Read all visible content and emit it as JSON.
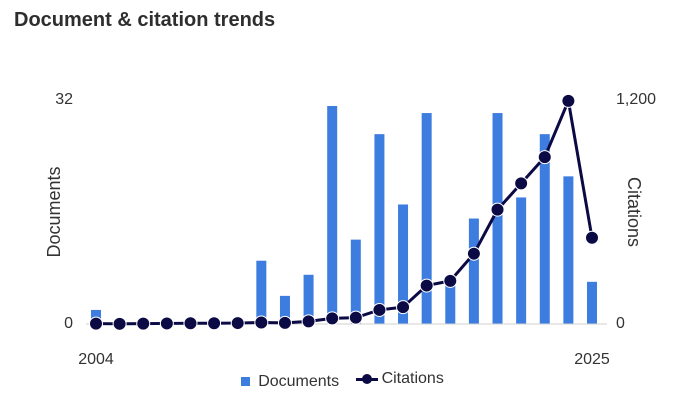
{
  "header": {
    "title": "Document & citation trends"
  },
  "chart_data": {
    "type": "bar+line",
    "x": [
      2004,
      2005,
      2006,
      2007,
      2008,
      2009,
      2010,
      2011,
      2012,
      2013,
      2014,
      2015,
      2016,
      2017,
      2018,
      2019,
      2020,
      2021,
      2022,
      2023,
      2024,
      2025
    ],
    "x_tick_labels": [
      "2004",
      "2025"
    ],
    "series": [
      {
        "name": "Documents",
        "type": "bar",
        "axis": "left",
        "values": [
          2,
          0,
          0,
          0,
          0,
          0,
          0,
          9,
          4,
          7,
          31,
          12,
          27,
          17,
          30,
          6,
          15,
          30,
          18,
          27,
          21,
          6
        ]
      },
      {
        "name": "Citations",
        "type": "line",
        "axis": "right",
        "values": [
          2,
          1,
          2,
          3,
          4,
          4,
          5,
          8,
          6,
          14,
          30,
          34,
          75,
          90,
          205,
          230,
          375,
          610,
          750,
          890,
          1190,
          460
        ]
      }
    ],
    "left_axis": {
      "label": "Documents",
      "range": [
        0,
        32
      ],
      "ticks": [
        "0",
        "32"
      ]
    },
    "right_axis": {
      "label": "Citations",
      "range": [
        0,
        1200
      ],
      "ticks": [
        "0",
        "1,200"
      ]
    },
    "legend": {
      "position": "bottom",
      "items": [
        "Documents",
        "Citations"
      ]
    },
    "colors": {
      "bars": "#3d7de0",
      "line": "#0b0a45"
    },
    "grid": false
  }
}
